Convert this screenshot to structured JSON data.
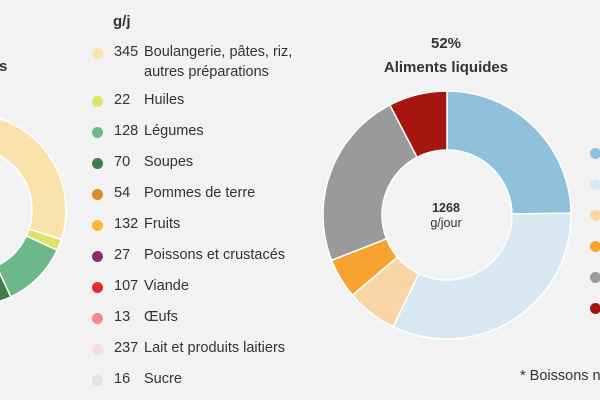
{
  "chart_data": [
    {
      "type": "pie",
      "legend_header": "g/j",
      "left_edge_label": "s",
      "slices": [
        {
          "value": 345,
          "label": "Boulangerie, pâtes, riz,",
          "label2": "autres préparations",
          "color": "#f9e3aa"
        },
        {
          "value": 22,
          "label": "Huiles",
          "color": "#dde36a"
        },
        {
          "value": 128,
          "label": "Légumes",
          "color": "#6cb888"
        },
        {
          "value": 70,
          "label": "Soupes",
          "color": "#3f7e48"
        },
        {
          "value": 54,
          "label": "Pommes de terre",
          "color": "#dc8a2a"
        },
        {
          "value": 132,
          "label": "Fruits",
          "color": "#f8b83a"
        },
        {
          "value": 27,
          "label": "Poissons et crustacés",
          "color": "#8b2a72"
        },
        {
          "value": 107,
          "label": "Viande",
          "color": "#e32b2e"
        },
        {
          "value": 13,
          "label": "Œufs",
          "color": "#f08a86"
        },
        {
          "value": 237,
          "label": "Lait et produits laitiers",
          "color": "#f8dcd9"
        },
        {
          "value": 16,
          "label": "Sucre",
          "color": "#e2e2e2"
        }
      ]
    },
    {
      "type": "pie",
      "title_pct": "52%",
      "title": "Aliments liquides",
      "center_value": "1268",
      "center_unit": "g/jour",
      "slices": [
        {
          "value": 0.26,
          "color": "#8fc1dd"
        },
        {
          "value": 0.34,
          "color": "#d8e8f2"
        },
        {
          "value": 0.07,
          "color": "#fad5a6"
        },
        {
          "value": 0.055,
          "color": "#f7a330"
        },
        {
          "value": 0.245,
          "color": "#9a9a9a"
        },
        {
          "value": 0.08,
          "color": "#a5160f"
        }
      ]
    }
  ],
  "footnote": "* Boissons n"
}
